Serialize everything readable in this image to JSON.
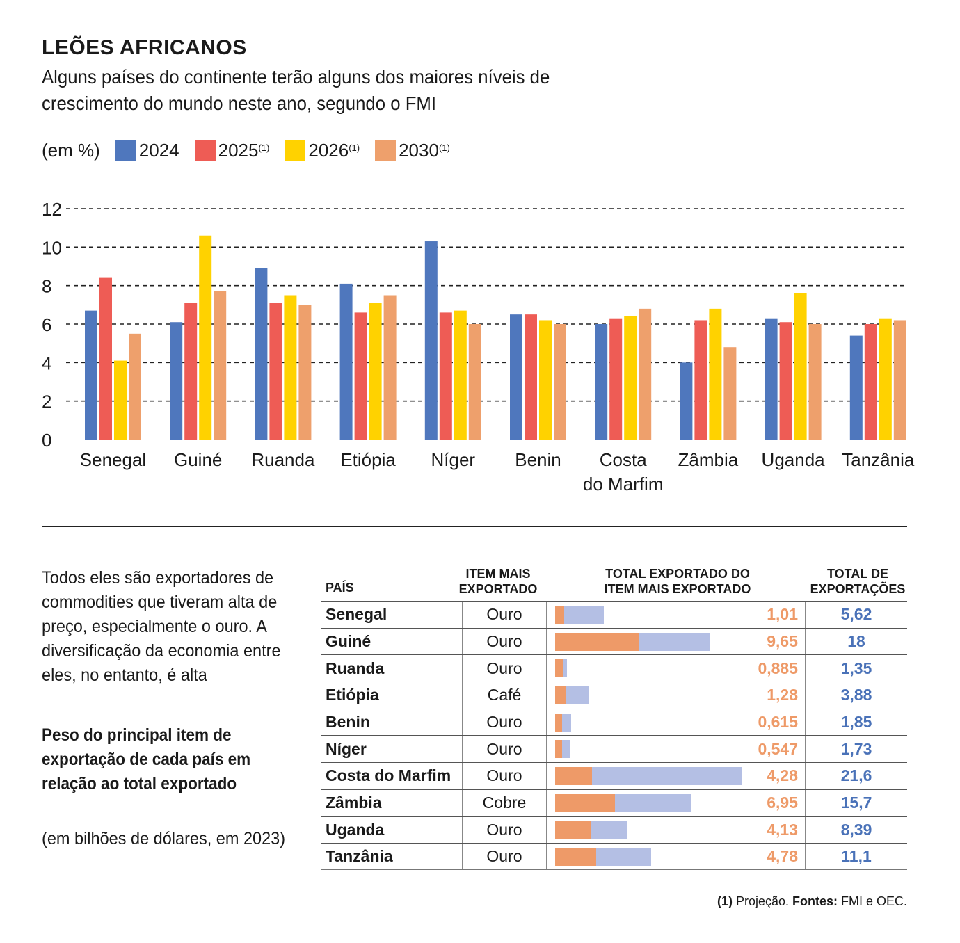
{
  "title": "LEÕES AFRICANOS",
  "subtitle": "Alguns países do continente terão alguns dos maiores níveis de crescimento do mundo neste ano, segundo o FMI",
  "legend": {
    "unit": "(em %)",
    "items": [
      {
        "label": "2024",
        "sup": "",
        "color": "#4f77bd"
      },
      {
        "label": "2025",
        "sup": "(1)",
        "color": "#ee5c55"
      },
      {
        "label": "2026",
        "sup": "(1)",
        "color": "#ffd200"
      },
      {
        "label": "2030",
        "sup": "(1)",
        "color": "#eea06c"
      }
    ]
  },
  "chart_data": [
    {
      "type": "bar",
      "categories": [
        "Senegal",
        "Guiné",
        "Ruanda",
        "Etiópia",
        "Níger",
        "Benin",
        "Costa do Marfim",
        "Zâmbia",
        "Uganda",
        "Tanzânia"
      ],
      "category_lines": [
        [
          "Senegal"
        ],
        [
          "Guiné"
        ],
        [
          "Ruanda"
        ],
        [
          "Etiópia"
        ],
        [
          "Níger"
        ],
        [
          "Benin"
        ],
        [
          "Costa",
          "do Marfim"
        ],
        [
          "Zâmbia"
        ],
        [
          "Uganda"
        ],
        [
          "Tanzânia"
        ]
      ],
      "series": [
        {
          "name": "2024",
          "values": [
            6.7,
            6.1,
            8.9,
            8.1,
            10.3,
            6.5,
            6.0,
            4.0,
            6.3,
            5.4
          ]
        },
        {
          "name": "2025(1)",
          "values": [
            8.4,
            7.1,
            7.1,
            6.6,
            6.6,
            6.5,
            6.3,
            6.2,
            6.1,
            6.0
          ]
        },
        {
          "name": "2026(1)",
          "values": [
            4.1,
            10.6,
            7.5,
            7.1,
            6.7,
            6.2,
            6.4,
            6.8,
            7.6,
            6.3
          ]
        },
        {
          "name": "2030(1)",
          "values": [
            5.5,
            7.7,
            7.0,
            7.5,
            6.0,
            6.0,
            6.8,
            4.8,
            6.0,
            6.2
          ]
        }
      ],
      "yticks": [
        "0",
        "2",
        "4",
        "6",
        "8",
        "10",
        "12"
      ],
      "ylim": [
        0,
        12
      ],
      "grid": "dashed horizontal",
      "legend_placement": "top-left"
    },
    {
      "type": "table",
      "columns": [
        "PAÍS",
        "ITEM MAIS EXPORTADO",
        "TOTAL EXPORTADO DO ITEM MAIS EXPORTADO",
        "TOTAL DE EXPORTAÇÕES"
      ],
      "rows": [
        {
          "country": "Senegal",
          "item": "Ouro",
          "item_value": "1,01",
          "total": "5,62",
          "item_num": 1.01,
          "total_num": 5.62
        },
        {
          "country": "Guiné",
          "item": "Ouro",
          "item_value": "9,65",
          "total": "18",
          "item_num": 9.65,
          "total_num": 18
        },
        {
          "country": "Ruanda",
          "item": "Ouro",
          "item_value": "0,885",
          "total": "1,35",
          "item_num": 0.885,
          "total_num": 1.35
        },
        {
          "country": "Etiópia",
          "item": "Café",
          "item_value": "1,28",
          "total": "3,88",
          "item_num": 1.28,
          "total_num": 3.88
        },
        {
          "country": "Benin",
          "item": "Ouro",
          "item_value": "0,615",
          "total": "1,85",
          "item_num": 0.615,
          "total_num": 1.85
        },
        {
          "country": "Níger",
          "item": "Ouro",
          "item_value": "0,547",
          "total": "1,73",
          "item_num": 0.547,
          "total_num": 1.73
        },
        {
          "country": "Costa do Marfim",
          "item": "Ouro",
          "item_value": "4,28",
          "total": "21,6",
          "item_num": 4.28,
          "total_num": 21.6
        },
        {
          "country": "Zâmbia",
          "item": "Cobre",
          "item_value": "6,95",
          "total": "15,7",
          "item_num": 6.95,
          "total_num": 15.7
        },
        {
          "country": "Uganda",
          "item": "Ouro",
          "item_value": "4,13",
          "total": "8,39",
          "item_num": 4.13,
          "total_num": 8.39
        },
        {
          "country": "Tanzânia",
          "item": "Ouro",
          "item_value": "4,78",
          "total": "11,1",
          "item_num": 4.78,
          "total_num": 11.1
        }
      ],
      "bar_colors": {
        "item": "#ee9a68",
        "total": "#b4bfe4"
      }
    }
  ],
  "table": {
    "col_country": "PAÍS",
    "col_item_1": "ITEM MAIS",
    "col_item_2": "EXPORTADO",
    "col_bar_1": "TOTAL EXPORTADO DO",
    "col_bar_2": "ITEM MAIS EXPORTADO",
    "col_total_1": "TOTAL DE",
    "col_total_2": "EXPORTAÇÕES"
  },
  "intro": {
    "text": "Todos eles são exportadores de commodities que tiveram alta de preço, especialmente o ouro. A diversificação da economia entre eles, no entanto, é alta",
    "bold": "Peso do principal item de exportação de cada país em relação ao total exportado",
    "unit": "(em bilhões de dólares, em 2023)"
  },
  "footnote": {
    "marker": "(1)",
    "text1": " Projeção. ",
    "source_label": "Fontes:",
    "text2": " FMI e OEC."
  }
}
